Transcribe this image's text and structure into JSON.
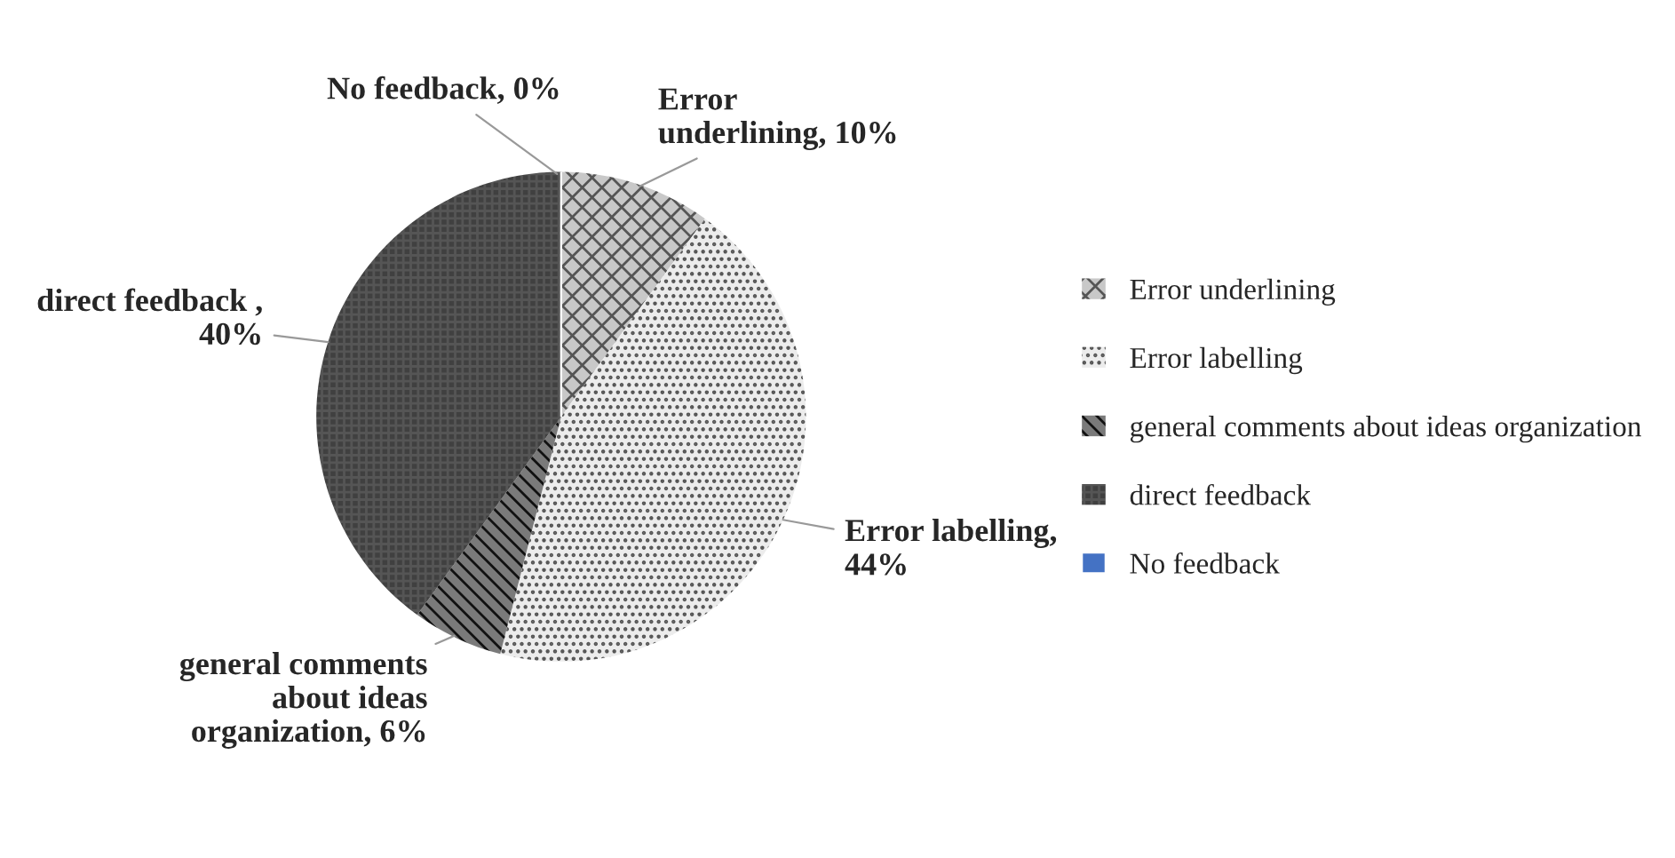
{
  "chart_data": {
    "type": "pie",
    "categories": [
      "Error underlining",
      "Error labelling",
      "general comments about ideas organization",
      "direct feedback",
      "No feedback"
    ],
    "values": [
      10,
      44,
      6,
      40,
      0
    ],
    "colors": [
      "#c8c8c8",
      "#ececec",
      "#7a7a7a",
      "#404040",
      "#4472c4"
    ],
    "value_labels": [
      "Error\nunderlining, 10%",
      "Error labelling,\n44%",
      "general comments\nabout ideas\norganization, 6%",
      "direct feedback ,\n40%",
      "No feedback, 0%"
    ],
    "legend": "right"
  }
}
